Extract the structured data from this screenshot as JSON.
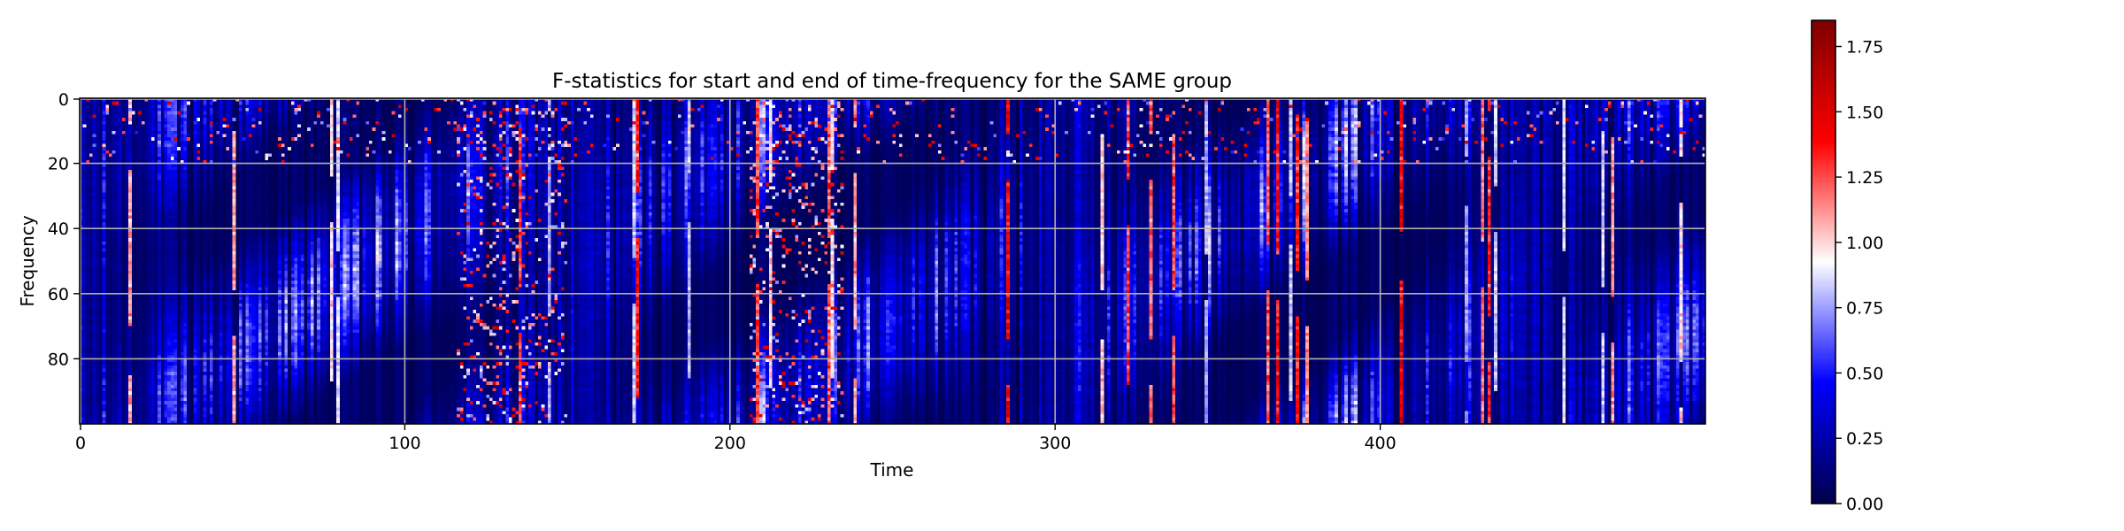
{
  "chart_data": {
    "type": "heatmap",
    "title": "F-statistics for start and end of time-frequency for the SAME group",
    "xlabel": "Time",
    "ylabel": "Frequency",
    "xlim": [
      0,
      500
    ],
    "ylim": [
      0,
      100
    ],
    "y_inverted": true,
    "grid": true,
    "x_ticks": [
      0,
      100,
      200,
      300,
      400
    ],
    "x_tick_labels": [
      "0",
      "100",
      "200",
      "300",
      "400"
    ],
    "y_ticks": [
      0,
      20,
      40,
      60,
      80
    ],
    "y_tick_labels": [
      "0",
      "20",
      "40",
      "60",
      "80"
    ],
    "colormap": "seismic",
    "colormap_stops": [
      "#00004c",
      "#0000ff",
      "#ffffff",
      "#ff0000",
      "#7f0000"
    ],
    "value_range": [
      0.0,
      1.85
    ],
    "colorbar": {
      "ticks": [
        0.0,
        0.25,
        0.5,
        0.75,
        1.0,
        1.25,
        1.5,
        1.75
      ],
      "tick_labels": [
        "0.00",
        "0.25",
        "0.50",
        "0.75",
        "1.00",
        "1.25",
        "1.50",
        "1.75"
      ]
    },
    "grid_shape": {
      "n_time": 500,
      "n_freq": 100
    },
    "texture_note": "dense vertical streaks; values mostly 0-0.6 with red streaks above 1.0"
  }
}
